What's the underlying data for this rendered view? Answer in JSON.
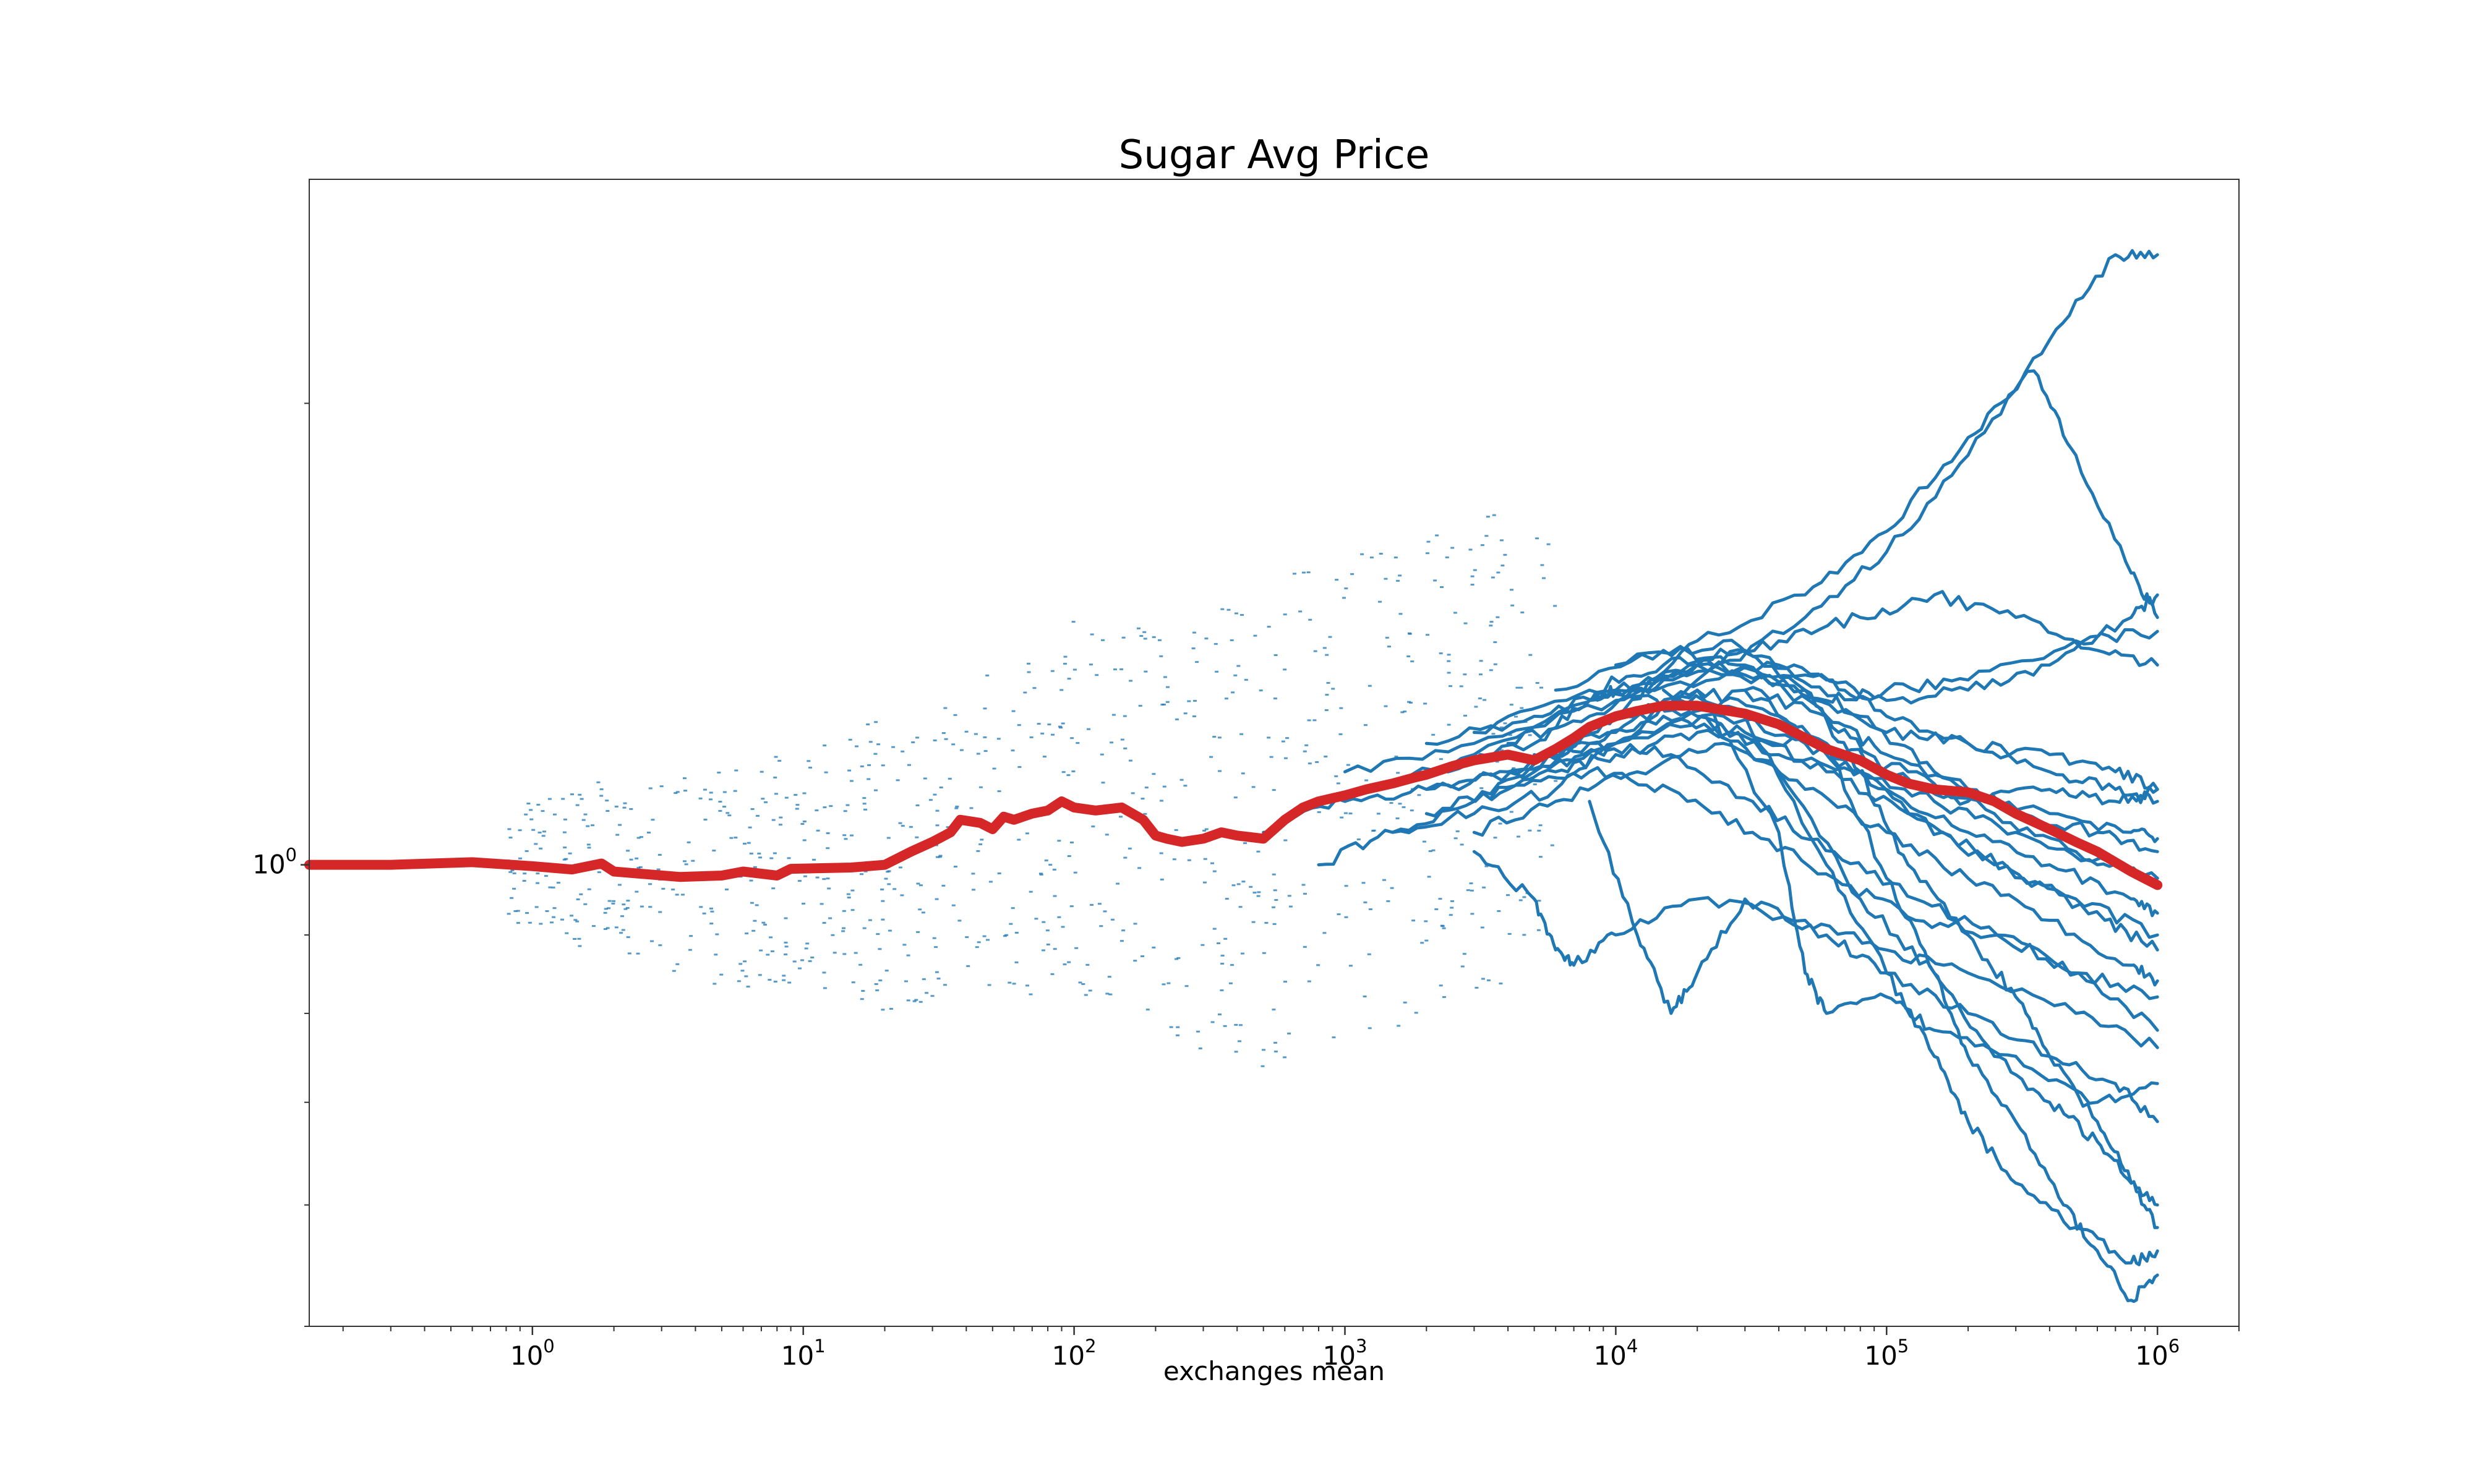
{
  "chart_data": {
    "type": "line",
    "title": "Sugar Avg Price",
    "xlabel": "exchanges mean",
    "ylabel": "",
    "x_scale": "log",
    "y_scale": "log",
    "xlim": [
      0.15,
      2000000
    ],
    "ylim": [
      0.5,
      2.8
    ],
    "grid": false,
    "legend": "none",
    "x_ticks": [
      {
        "base": "10",
        "exp": "0",
        "value": 1
      },
      {
        "base": "10",
        "exp": "1",
        "value": 10
      },
      {
        "base": "10",
        "exp": "2",
        "value": 100
      },
      {
        "base": "10",
        "exp": "3",
        "value": 1000
      },
      {
        "base": "10",
        "exp": "4",
        "value": 10000
      },
      {
        "base": "10",
        "exp": "5",
        "value": 100000
      },
      {
        "base": "10",
        "exp": "6",
        "value": 1000000
      }
    ],
    "y_ticks": [
      {
        "base": "10",
        "exp": "0",
        "value": 1
      }
    ],
    "colors": {
      "runs": "#1f77b4",
      "mean": "#d62728",
      "axes": "#333333"
    },
    "mean_series": {
      "x": [
        0.15,
        0.3,
        0.6,
        1.0,
        1.4,
        1.8,
        2.0,
        3.5,
        5,
        6,
        8,
        9,
        15,
        20,
        25,
        30,
        35,
        38,
        45,
        50,
        55,
        60,
        70,
        80,
        90,
        100,
        120,
        150,
        180,
        200,
        220,
        250,
        300,
        350,
        400,
        500,
        600,
        700,
        800,
        1000,
        1200,
        1500,
        1800,
        2000,
        2500,
        3000,
        4000,
        5000,
        6000,
        7000,
        8000,
        10000,
        12000,
        15000,
        20000,
        30000,
        40000,
        50000,
        60000,
        80000,
        100000,
        120000,
        150000,
        200000,
        250000,
        300000,
        400000,
        500000,
        600000,
        800000,
        1000000
      ],
      "y": [
        1.0,
        1.0,
        1.004,
        0.998,
        0.993,
        1.002,
        0.99,
        0.982,
        0.984,
        0.99,
        0.984,
        0.994,
        0.996,
        1.0,
        1.02,
        1.035,
        1.05,
        1.07,
        1.065,
        1.055,
        1.075,
        1.07,
        1.08,
        1.085,
        1.1,
        1.09,
        1.085,
        1.09,
        1.07,
        1.045,
        1.04,
        1.035,
        1.04,
        1.05,
        1.045,
        1.04,
        1.07,
        1.09,
        1.1,
        1.11,
        1.12,
        1.13,
        1.14,
        1.145,
        1.16,
        1.17,
        1.18,
        1.17,
        1.19,
        1.21,
        1.23,
        1.25,
        1.26,
        1.27,
        1.27,
        1.255,
        1.235,
        1.21,
        1.19,
        1.17,
        1.145,
        1.13,
        1.12,
        1.115,
        1.1,
        1.08,
        1.055,
        1.035,
        1.02,
        0.99,
        0.97
      ]
    },
    "runs": [
      {
        "x": [
          500,
          1000,
          2000,
          5000,
          10000,
          20000,
          50000,
          100000,
          200000,
          400000,
          700000,
          1000000
        ],
        "y": [
          1.05,
          1.1,
          1.12,
          1.15,
          1.2,
          1.32,
          1.45,
          1.6,
          1.85,
          2.2,
          2.5,
          2.5
        ]
      },
      {
        "x": [
          800,
          1500,
          3000,
          6000,
          10000,
          20000,
          50000,
          100000,
          200000,
          350000,
          500000,
          800000,
          1000000
        ],
        "y": [
          1.0,
          1.05,
          1.1,
          1.18,
          1.25,
          1.4,
          1.5,
          1.65,
          1.9,
          2.1,
          1.85,
          1.55,
          1.45
        ]
      },
      {
        "x": [
          1000,
          3000,
          10000,
          20000,
          40000,
          80000,
          150000,
          300000,
          600000,
          1000000
        ],
        "y": [
          1.15,
          1.2,
          1.28,
          1.35,
          1.4,
          1.45,
          1.5,
          1.45,
          1.38,
          1.35
        ]
      },
      {
        "x": [
          2000,
          5000,
          10000,
          20000,
          50000,
          100000,
          200000,
          400000,
          800000,
          1000000
        ],
        "y": [
          1.2,
          1.25,
          1.3,
          1.35,
          1.33,
          1.28,
          1.3,
          1.35,
          1.45,
          1.5
        ]
      },
      {
        "x": [
          1000,
          3000,
          10000,
          30000,
          60000,
          100000,
          200000,
          500000,
          1000000
        ],
        "y": [
          1.1,
          1.18,
          1.3,
          1.33,
          1.28,
          1.3,
          1.32,
          1.4,
          1.42
        ]
      },
      {
        "x": [
          1500,
          3000,
          6000,
          10000,
          30000,
          60000,
          100000,
          200000,
          400000,
          700000,
          1000000
        ],
        "y": [
          1.05,
          1.08,
          1.12,
          1.2,
          1.3,
          1.25,
          1.15,
          1.1,
          1.12,
          1.1,
          1.12
        ]
      },
      {
        "x": [
          3000,
          8000,
          15000,
          30000,
          60000,
          100000,
          200000,
          400000,
          700000,
          1000000
        ],
        "y": [
          1.22,
          1.3,
          1.35,
          1.38,
          1.32,
          1.25,
          1.2,
          1.15,
          1.12,
          1.1
        ]
      },
      {
        "x": [
          4000,
          8000,
          15000,
          40000,
          80000,
          150000,
          300000,
          600000,
          1000000
        ],
        "y": [
          1.2,
          1.25,
          1.32,
          1.35,
          1.25,
          1.15,
          1.08,
          1.05,
          1.02
        ]
      },
      {
        "x": [
          2000,
          5000,
          8000,
          10000,
          20000,
          40000,
          80000,
          150000,
          300000,
          600000,
          1000000
        ],
        "y": [
          1.15,
          1.2,
          1.28,
          1.3,
          1.25,
          1.18,
          1.15,
          1.1,
          1.05,
          1.0,
          0.98
        ]
      },
      {
        "x": [
          3000,
          6000,
          10000,
          20000,
          50000,
          100000,
          200000,
          400000,
          800000,
          1000000
        ],
        "y": [
          1.1,
          1.15,
          1.18,
          1.22,
          1.2,
          1.12,
          1.05,
          1.0,
          0.95,
          0.93
        ]
      },
      {
        "x": [
          2000,
          4000,
          8000,
          15000,
          30000,
          60000,
          120000,
          250000,
          500000,
          1000000
        ],
        "y": [
          1.12,
          1.15,
          1.2,
          1.25,
          1.22,
          1.15,
          1.08,
          1.0,
          0.95,
          0.9
        ]
      },
      {
        "x": [
          5000,
          10000,
          20000,
          40000,
          80000,
          160000,
          320000,
          640000,
          1000000
        ],
        "y": [
          1.18,
          1.22,
          1.3,
          1.25,
          1.15,
          1.05,
          0.98,
          0.92,
          0.88
        ]
      },
      {
        "x": [
          3000,
          6000,
          12000,
          25000,
          50000,
          100000,
          200000,
          400000,
          800000,
          1000000
        ],
        "y": [
          1.05,
          1.1,
          1.15,
          1.2,
          1.12,
          1.05,
          0.98,
          0.92,
          0.86,
          0.84
        ]
      },
      {
        "x": [
          4000,
          8000,
          16000,
          32000,
          64000,
          128000,
          256000,
          512000,
          1000000
        ],
        "y": [
          1.15,
          1.2,
          1.18,
          1.1,
          1.02,
          0.95,
          0.9,
          0.85,
          0.82
        ]
      },
      {
        "x": [
          2000,
          4000,
          8000,
          16000,
          32000,
          64000,
          128000,
          256000,
          512000,
          1000000
        ],
        "y": [
          1.08,
          1.12,
          1.15,
          1.12,
          1.05,
          0.98,
          0.92,
          0.9,
          0.85,
          0.78
        ]
      },
      {
        "x": [
          3000,
          5000,
          6000,
          7000,
          10000,
          20000,
          50000,
          100000,
          200000,
          500000,
          1000000
        ],
        "y": [
          1.02,
          0.95,
          0.88,
          0.86,
          0.9,
          0.95,
          0.92,
          0.88,
          0.85,
          0.8,
          0.76
        ]
      },
      {
        "x": [
          8000,
          12000,
          16000,
          20000,
          30000,
          60000,
          100000,
          200000,
          400000,
          700000,
          1000000
        ],
        "y": [
          1.1,
          0.9,
          0.8,
          0.85,
          0.95,
          0.9,
          0.85,
          0.8,
          0.75,
          0.72,
          0.68
        ]
      },
      {
        "x": [
          10000,
          20000,
          40000,
          50000,
          60000,
          100000,
          150000,
          300000,
          600000,
          1000000
        ],
        "y": [
          1.25,
          1.3,
          1.05,
          0.85,
          0.8,
          0.82,
          0.78,
          0.75,
          0.7,
          0.72
        ]
      },
      {
        "x": [
          15000,
          30000,
          60000,
          100000,
          150000,
          200000,
          300000,
          500000,
          800000,
          1000000
        ],
        "y": [
          1.3,
          1.25,
          1.0,
          0.85,
          0.75,
          0.68,
          0.62,
          0.58,
          0.55,
          0.56
        ]
      },
      {
        "x": [
          20000,
          40000,
          80000,
          150000,
          250000,
          400000,
          600000,
          800000,
          1000000
        ],
        "y": [
          1.25,
          1.15,
          0.95,
          0.85,
          0.75,
          0.7,
          0.66,
          0.62,
          0.58
        ]
      },
      {
        "x": [
          30000,
          60000,
          100000,
          150000,
          200000,
          300000,
          450000,
          600000,
          800000,
          1000000
        ],
        "y": [
          1.3,
          1.2,
          0.98,
          0.85,
          0.75,
          0.68,
          0.6,
          0.56,
          0.52,
          0.54
        ]
      },
      {
        "x": [
          10000,
          25000,
          50000,
          80000,
          120000,
          200000,
          300000,
          400000,
          600000,
          800000,
          1000000
        ],
        "y": [
          1.35,
          1.4,
          1.3,
          1.15,
          1.0,
          0.9,
          0.82,
          0.75,
          0.68,
          0.62,
          0.6
        ]
      },
      {
        "x": [
          6000,
          15000,
          30000,
          60000,
          100000,
          200000,
          400000,
          800000,
          1000000
        ],
        "y": [
          1.3,
          1.38,
          1.35,
          1.25,
          1.18,
          1.12,
          1.08,
          1.05,
          1.04
        ]
      },
      {
        "x": [
          8000,
          20000,
          50000,
          100000,
          200000,
          400000,
          700000,
          1000000
        ],
        "y": [
          1.28,
          1.35,
          1.3,
          1.22,
          1.2,
          1.18,
          1.15,
          1.12
        ]
      },
      {
        "x": [
          5000,
          10000,
          25000,
          60000,
          120000,
          250000,
          500000,
          1000000
        ],
        "y": [
          1.15,
          1.2,
          1.25,
          1.2,
          1.15,
          1.08,
          1.02,
          0.98
        ]
      }
    ]
  }
}
